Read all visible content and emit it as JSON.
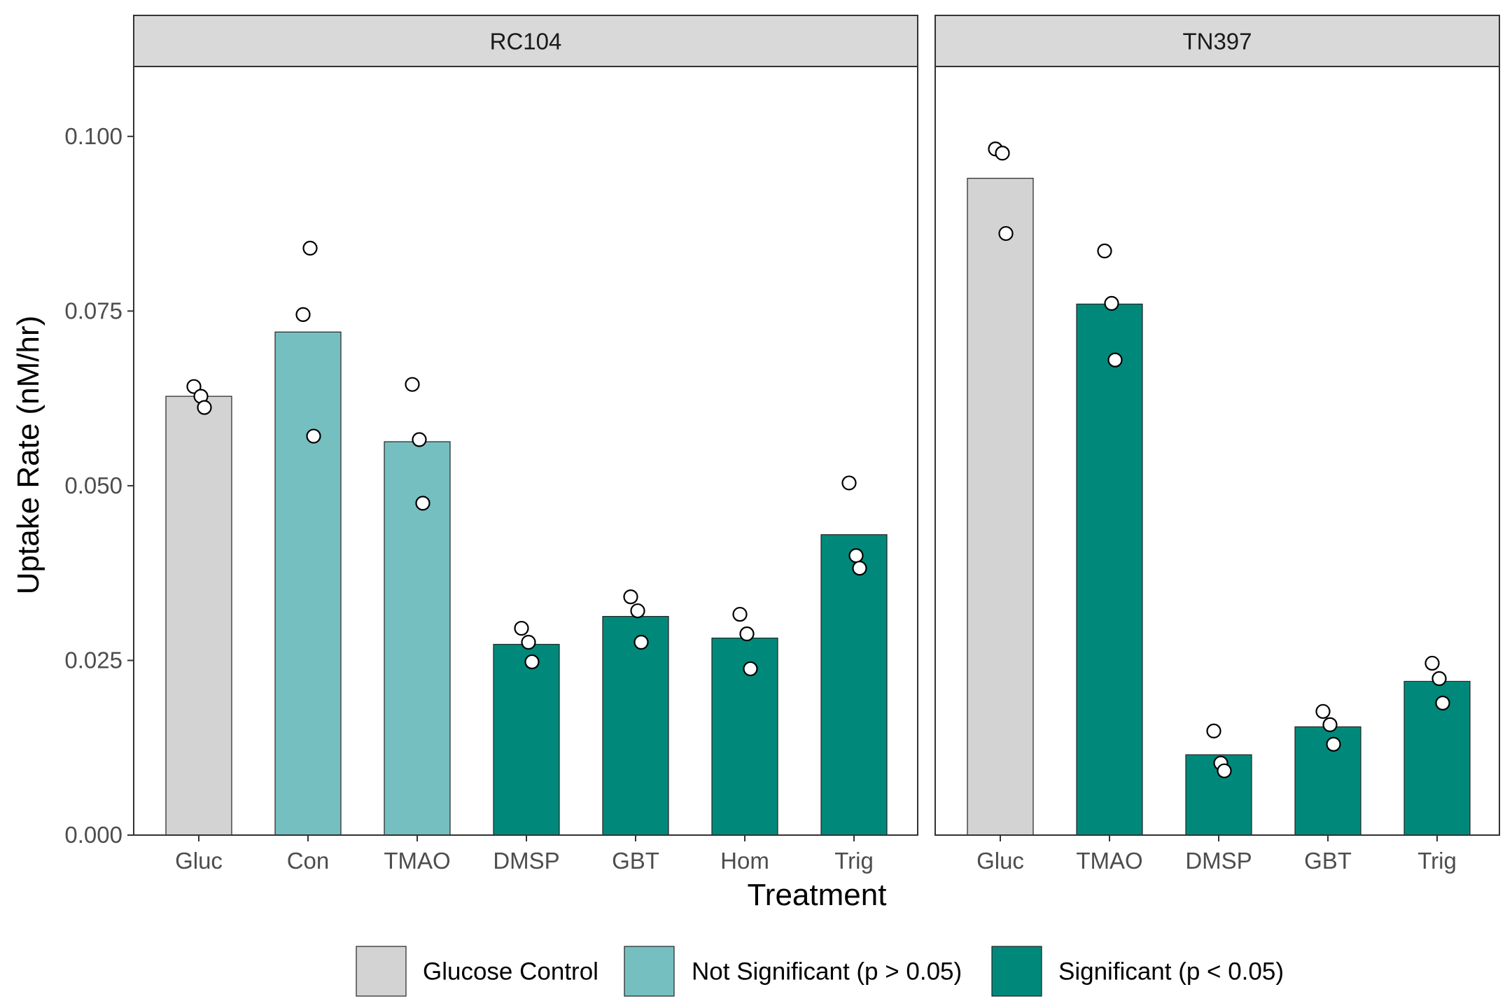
{
  "chart_data": {
    "type": "bar",
    "xlabel": "Treatment",
    "ylabel": "Uptake Rate (nM/hr)",
    "ylim": [
      0,
      0.11
    ],
    "y_ticks": [
      "0.000",
      "0.025",
      "0.050",
      "0.075",
      "0.100"
    ],
    "grid": false,
    "legend_position": "bottom",
    "colors": {
      "Glucose Control": "#d3d3d3",
      "Not Significant (p > 0.05)": "#76bfc1",
      "Significant (p < 0.05)": "#00897b"
    },
    "legend": [
      "Glucose Control",
      "Not Significant (p > 0.05)",
      "Significant (p < 0.05)"
    ],
    "panels": [
      {
        "strip": "RC104",
        "categories": [
          "Gluc",
          "Con",
          "TMAO",
          "DMSP",
          "GBT",
          "Hom",
          "Trig"
        ],
        "values": [
          0.0628,
          0.072,
          0.0563,
          0.0273,
          0.0313,
          0.0282,
          0.043
        ],
        "groups": [
          "Glucose Control",
          "Not Significant (p > 0.05)",
          "Not Significant (p > 0.05)",
          "Significant (p < 0.05)",
          "Significant (p < 0.05)",
          "Significant (p < 0.05)",
          "Significant (p < 0.05)"
        ],
        "points": [
          [
            0.0642,
            0.0628,
            0.0612
          ],
          [
            0.0745,
            0.084,
            0.0571
          ],
          [
            0.0645,
            0.0566,
            0.0475
          ],
          [
            0.0296,
            0.0276,
            0.0248
          ],
          [
            0.0341,
            0.0321,
            0.0276
          ],
          [
            0.0316,
            0.0288,
            0.0238
          ],
          [
            0.0504,
            0.04,
            0.0382
          ]
        ]
      },
      {
        "strip": "TN397",
        "categories": [
          "Gluc",
          "TMAO",
          "DMSP",
          "GBT",
          "Trig"
        ],
        "values": [
          0.094,
          0.076,
          0.0115,
          0.0155,
          0.022
        ],
        "groups": [
          "Glucose Control",
          "Significant (p < 0.05)",
          "Significant (p < 0.05)",
          "Significant (p < 0.05)",
          "Significant (p < 0.05)"
        ],
        "points": [
          [
            0.0982,
            0.0976,
            0.0861
          ],
          [
            0.0836,
            0.0761,
            0.068
          ],
          [
            0.0149,
            0.0103,
            0.0092
          ],
          [
            0.0177,
            0.0158,
            0.013
          ],
          [
            0.0246,
            0.0224,
            0.0189
          ]
        ]
      }
    ]
  }
}
